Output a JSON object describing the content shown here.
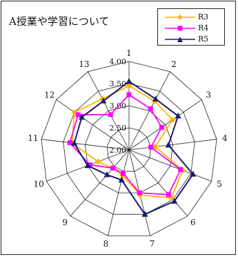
{
  "chart_data": {
    "type": "radar",
    "title": "A授業や学習について",
    "axes": [
      "1",
      "2",
      "3",
      "4",
      "5",
      "6",
      "7",
      "8",
      "9",
      "10",
      "11",
      "12",
      "13"
    ],
    "rlim": [
      2.0,
      4.0
    ],
    "ticks": [
      "2.00",
      "2.50",
      "3.00",
      "3.50",
      "4.00"
    ],
    "tick_values": [
      2.0,
      2.5,
      3.0,
      3.5,
      4.0
    ],
    "legend_position": "top-right",
    "series": [
      {
        "name": "R3",
        "color": "#FFB300",
        "marker": "diamond",
        "values": [
          3.45,
          3.25,
          3.2,
          2.6,
          3.3,
          3.45,
          3.05,
          2.6,
          2.55,
          2.75,
          3.3,
          3.5,
          3.3
        ]
      },
      {
        "name": "R4",
        "color": "#FF00FF",
        "marker": "square",
        "values": [
          3.25,
          3.05,
          2.9,
          2.5,
          3.25,
          3.35,
          3.0,
          2.55,
          2.55,
          2.95,
          3.35,
          3.4,
          2.9
        ]
      },
      {
        "name": "R5",
        "color": "#1A1A6E",
        "marker": "triangle",
        "values": [
          3.55,
          3.3,
          3.35,
          2.9,
          3.55,
          3.55,
          3.5,
          2.7,
          2.75,
          3.0,
          3.25,
          3.3,
          3.25
        ]
      }
    ]
  }
}
